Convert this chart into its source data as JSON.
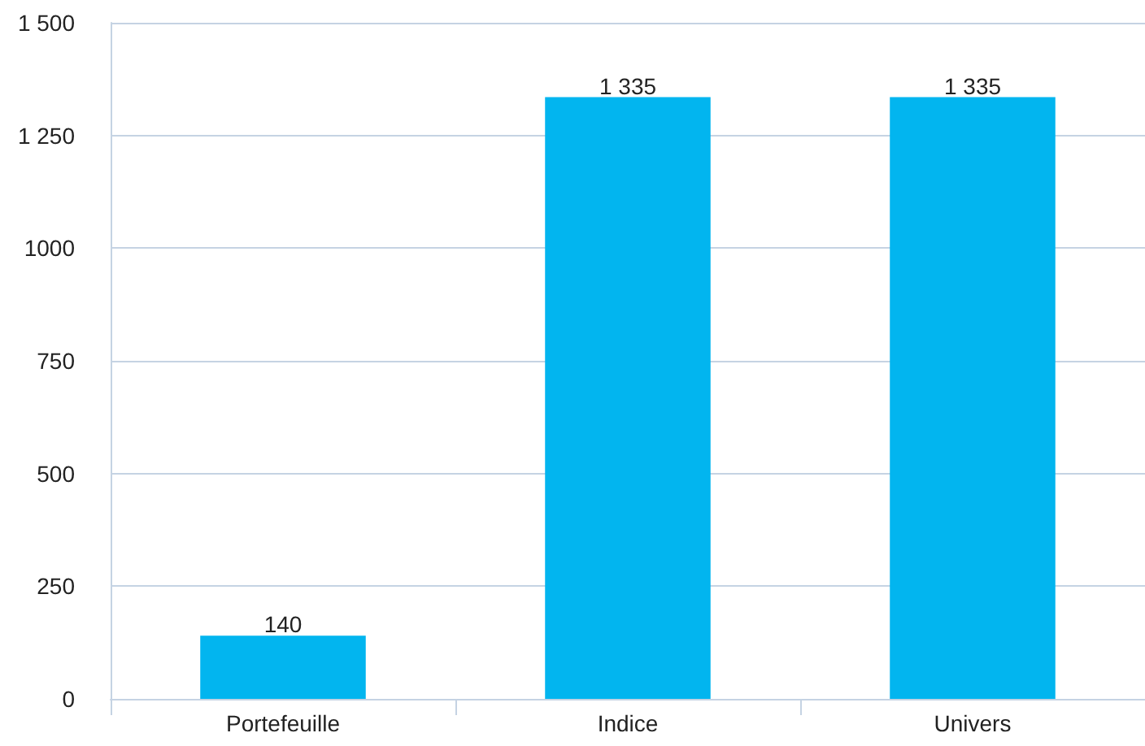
{
  "chart_data": {
    "type": "bar",
    "categories": [
      "Portefeuille",
      "Indice",
      "Univers"
    ],
    "values": [
      140,
      1335,
      1335
    ],
    "color": "#02b5ef",
    "value_labels": [
      "140",
      "1 335",
      "1 335"
    ],
    "ylim": [
      0,
      1500
    ],
    "yticks": [
      0,
      250,
      500,
      750,
      1000,
      {
        "value": 1250,
        "label": "1 250"
      },
      {
        "value": 1500,
        "label": "1 500"
      }
    ],
    "grid": "y"
  }
}
